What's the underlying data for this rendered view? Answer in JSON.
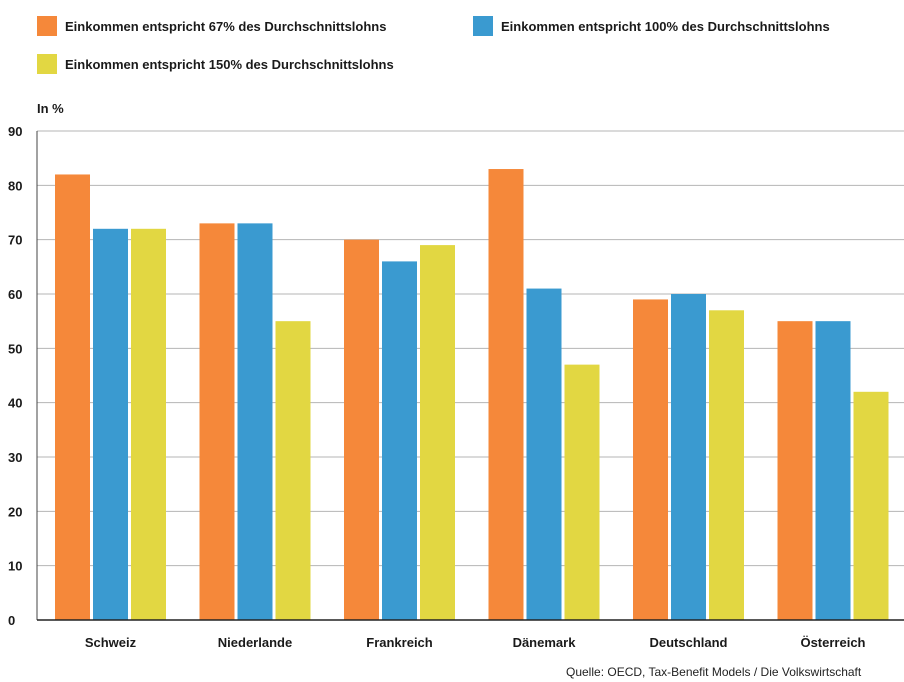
{
  "legend": [
    {
      "label": "Einkommen entspricht 67% des Durchschnittslohns",
      "color": "#f5883a"
    },
    {
      "label": "Einkommen entspricht 100% des Durchschnittslohns",
      "color": "#3a9ad0"
    },
    {
      "label": "Einkommen entspricht 150% des Durchschnittslohns",
      "color": "#e2d742"
    }
  ],
  "unit_label": "In %",
  "source": "Quelle: OECD, Tax-Benefit Models / Die Volkswirtschaft",
  "chart_data": {
    "type": "bar",
    "categories": [
      "Schweiz",
      "Niederlande",
      "Frankreich",
      "Dänemark",
      "Deutschland",
      "Österreich"
    ],
    "series": [
      {
        "name": "Einkommen entspricht 67% des Durchschnittslohns",
        "color": "#f5883a",
        "values": [
          82,
          73,
          70,
          83,
          59,
          55
        ]
      },
      {
        "name": "Einkommen entspricht 100% des Durchschnittslohns",
        "color": "#3a9ad0",
        "values": [
          72,
          73,
          66,
          61,
          60,
          55
        ]
      },
      {
        "name": "Einkommen entspricht 150% des Durchschnittslohns",
        "color": "#e2d742",
        "values": [
          72,
          55,
          69,
          47,
          57,
          42
        ]
      }
    ],
    "ylabel": "In %",
    "ylim": [
      0,
      90
    ],
    "yticks": [
      0,
      10,
      20,
      30,
      40,
      50,
      60,
      70,
      80,
      90
    ],
    "grid": true,
    "legend_position": "top-left"
  }
}
